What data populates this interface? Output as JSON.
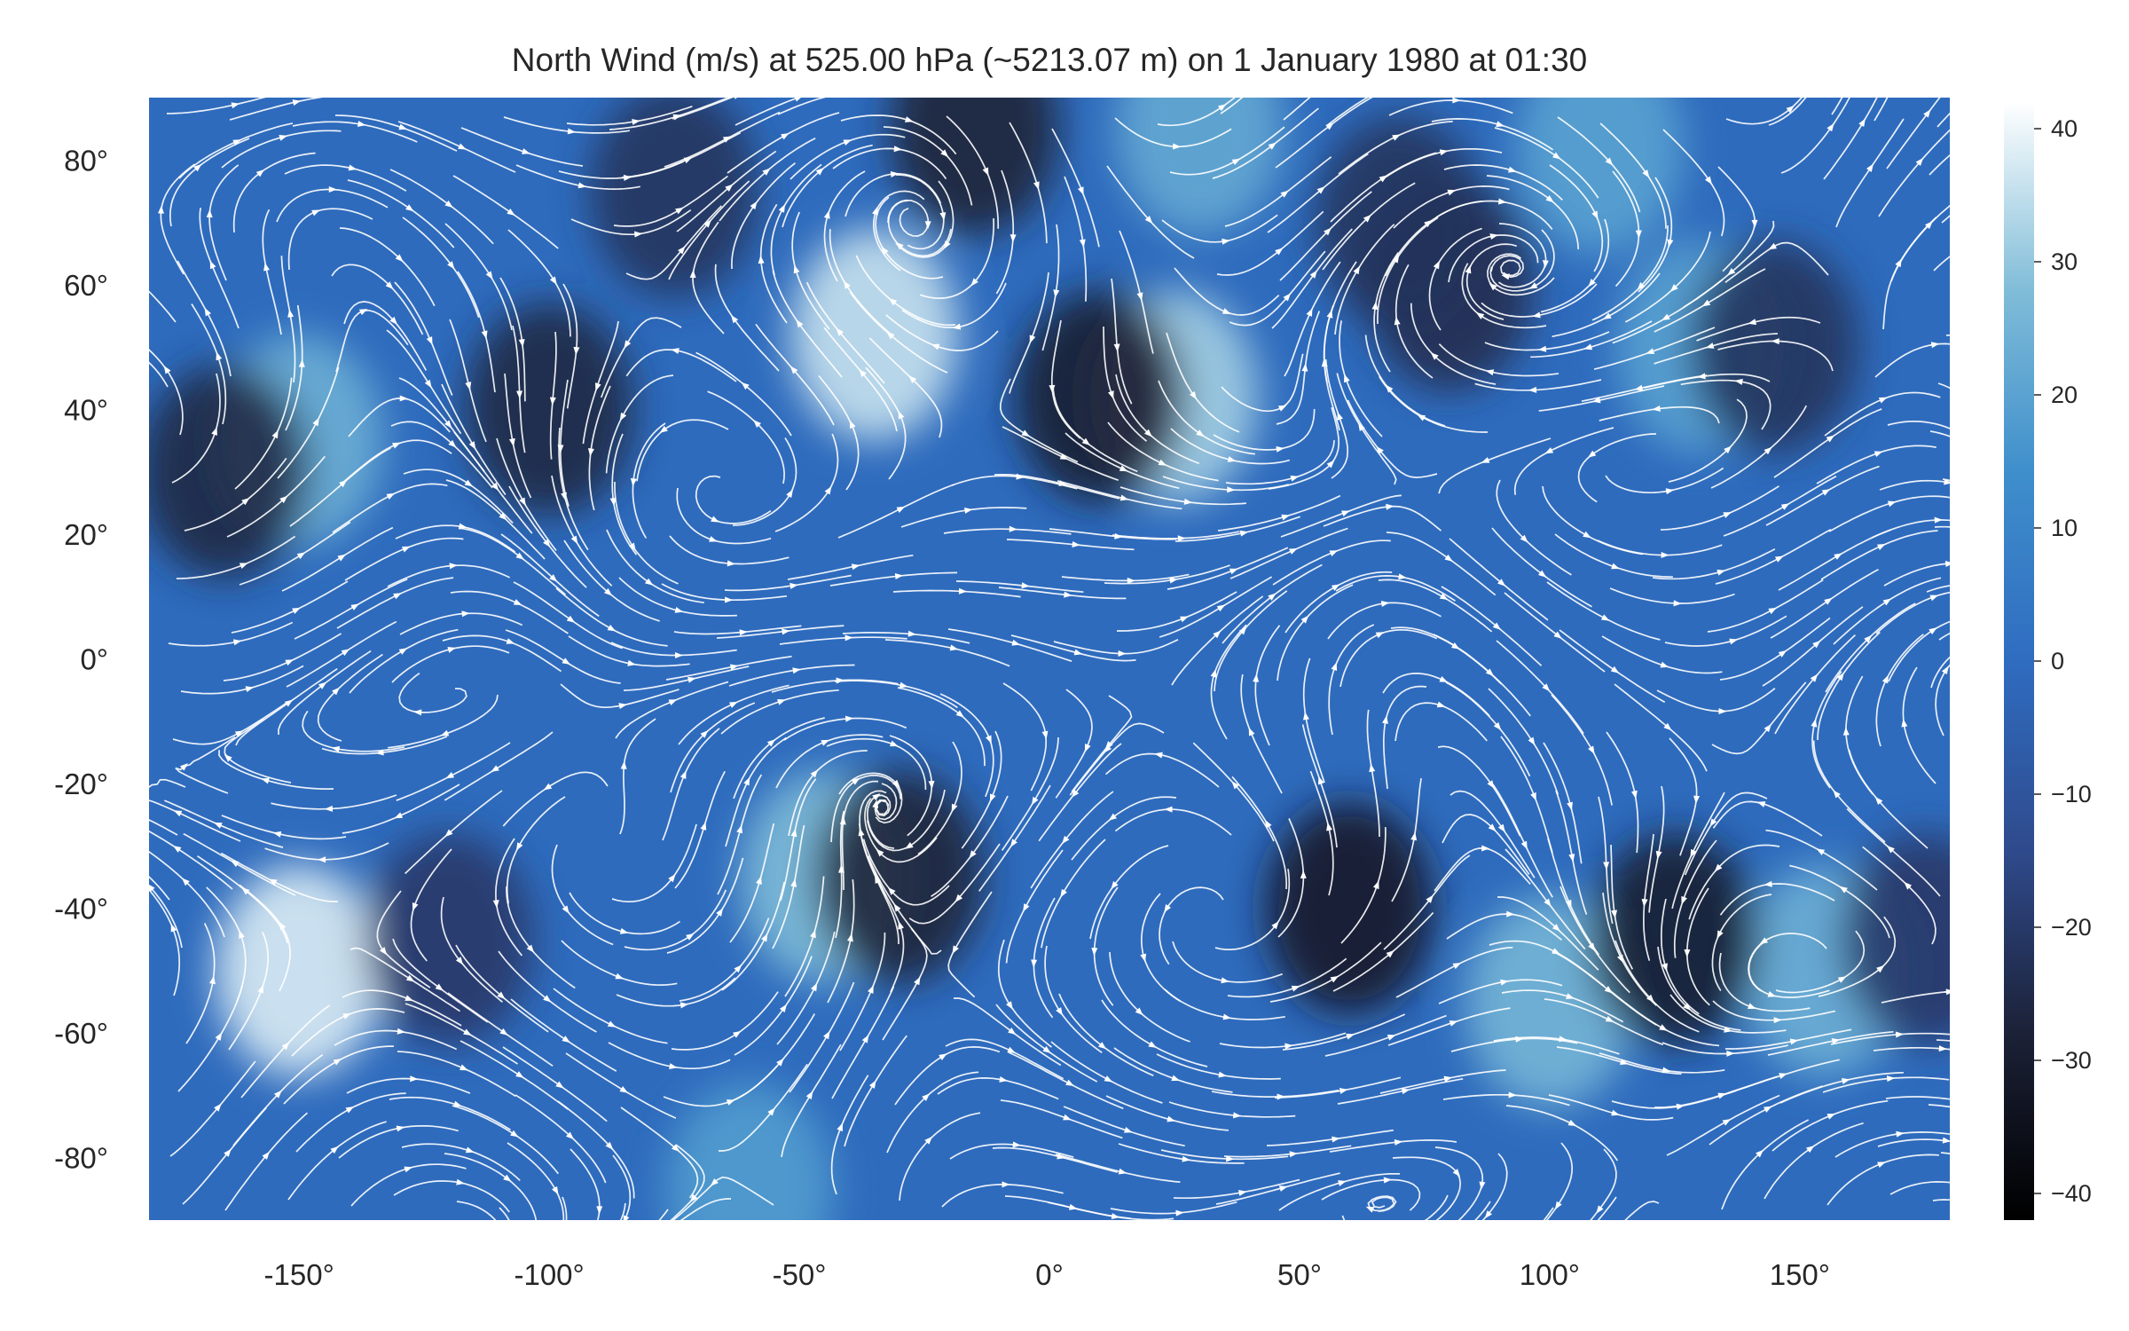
{
  "chart_data": {
    "type": "heatmap",
    "title": "North Wind (m/s) at 525.00 hPa (~5213.07 m) on 1 January 1980 at 01:30",
    "xlabel": "",
    "ylabel": "",
    "xlim": [
      -180,
      180
    ],
    "ylim": [
      -90,
      90
    ],
    "x_ticks": [
      -150,
      -100,
      -50,
      0,
      50,
      100,
      150
    ],
    "x_tick_labels": [
      "-150°",
      "-100°",
      "-50°",
      "0°",
      "50°",
      "100°",
      "150°"
    ],
    "y_ticks": [
      80,
      60,
      40,
      20,
      0,
      -20,
      -40,
      -60,
      -80
    ],
    "y_tick_labels": [
      "80°",
      "60°",
      "40°",
      "20°",
      "0°",
      "-20°",
      "-40°",
      "-60°",
      "-80°"
    ],
    "colorbar": {
      "range": [
        -42,
        42
      ],
      "ticks": [
        40,
        30,
        20,
        10,
        0,
        -10,
        -20,
        -30,
        -40
      ],
      "tick_labels": [
        "40",
        "30",
        "20",
        "10",
        "0",
        "−10",
        "−20",
        "−30",
        "−40"
      ],
      "colormap": [
        "#000000",
        "#1c2238",
        "#2f4a8c",
        "#2f6cc0",
        "#3f8fcc",
        "#7fbcd8",
        "#ffffff"
      ]
    },
    "grid": false,
    "overlay": "white streamlines with arrows",
    "field_features": [
      {
        "lon": -150,
        "lat": -50,
        "value": 38
      },
      {
        "lon": -35,
        "lat": 52,
        "value": 36
      },
      {
        "lon": 25,
        "lat": 42,
        "value": 32
      },
      {
        "lon": 100,
        "lat": -55,
        "value": 26
      },
      {
        "lon": 155,
        "lat": -50,
        "value": 24
      },
      {
        "lon": -150,
        "lat": 35,
        "value": 24
      },
      {
        "lon": -45,
        "lat": -35,
        "value": 28
      },
      {
        "lon": 130,
        "lat": 50,
        "value": 20
      },
      {
        "lon": 30,
        "lat": 85,
        "value": 22
      },
      {
        "lon": 110,
        "lat": 82,
        "value": 20
      },
      {
        "lon": -60,
        "lat": -85,
        "value": 18
      },
      {
        "lon": -15,
        "lat": 85,
        "value": -28
      },
      {
        "lon": 10,
        "lat": 42,
        "value": -30
      },
      {
        "lon": -30,
        "lat": -35,
        "value": -28
      },
      {
        "lon": 60,
        "lat": -40,
        "value": -32
      },
      {
        "lon": 125,
        "lat": -45,
        "value": -30
      },
      {
        "lon": -100,
        "lat": 40,
        "value": -26
      },
      {
        "lon": -165,
        "lat": 30,
        "value": -26
      },
      {
        "lon": -75,
        "lat": 75,
        "value": -22
      },
      {
        "lon": 80,
        "lat": 60,
        "value": -24
      },
      {
        "lon": 145,
        "lat": 50,
        "value": -22
      },
      {
        "lon": 175,
        "lat": -45,
        "value": -20
      },
      {
        "lon": -120,
        "lat": -45,
        "value": -20
      },
      {
        "lon": 70,
        "lat": 70,
        "value": -22
      }
    ]
  }
}
